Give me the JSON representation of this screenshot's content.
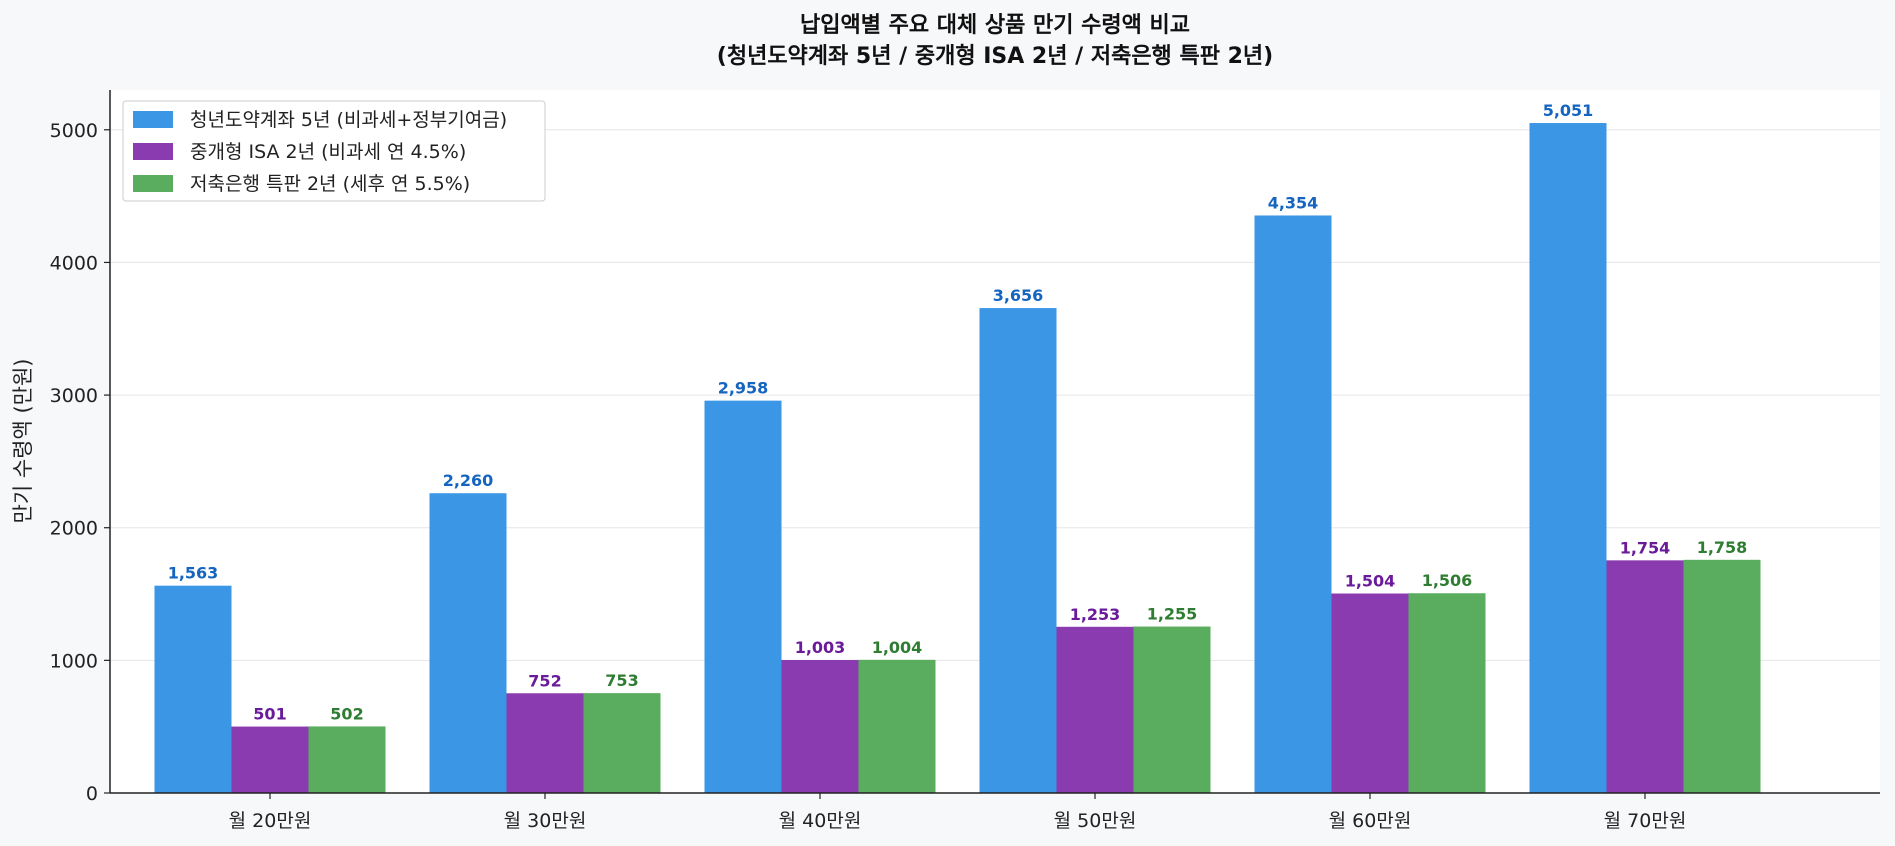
{
  "chart_data": {
    "type": "bar",
    "title": "납입액별 주요 대체 상품 만기 수령액 비교",
    "subtitle": "(청년도약계좌 5년 / 중개형 ISA 2년 / 저축은행 특판 2년)",
    "xlabel": "",
    "ylabel": "만기 수령액 (만원)",
    "ylim": [
      0,
      5300
    ],
    "yticks": [
      0,
      1000,
      2000,
      3000,
      4000,
      5000
    ],
    "grid": true,
    "legend_position": "top-left",
    "categories": [
      "월 20만원",
      "월 30만원",
      "월 40만원",
      "월 50만원",
      "월 60만원",
      "월 70만원"
    ],
    "series": [
      {
        "name": "청년도약계좌 5년 (비과세+정부기여금)",
        "color": "#3b96e6",
        "label_color": "#1565c0",
        "values": [
          1563,
          2260,
          2958,
          3656,
          4354,
          5051
        ],
        "labels": [
          "1,563",
          "2,260",
          "2,958",
          "3,656",
          "4,354",
          "5,051"
        ]
      },
      {
        "name": "중개형 ISA 2년 (비과세 연 4.5%)",
        "color": "#8a3bb0",
        "label_color": "#6a1b9a",
        "values": [
          501,
          752,
          1003,
          1253,
          1504,
          1754
        ],
        "labels": [
          "501",
          "752",
          "1,003",
          "1,253",
          "1,504",
          "1,754"
        ]
      },
      {
        "name": "저축은행 특판 2년 (세후 연 5.5%)",
        "color": "#5aad5e",
        "label_color": "#2e7d32",
        "values": [
          502,
          753,
          1004,
          1255,
          1506,
          1758
        ],
        "labels": [
          "502",
          "753",
          "1,004",
          "1,255",
          "1,506",
          "1,758"
        ]
      }
    ]
  }
}
